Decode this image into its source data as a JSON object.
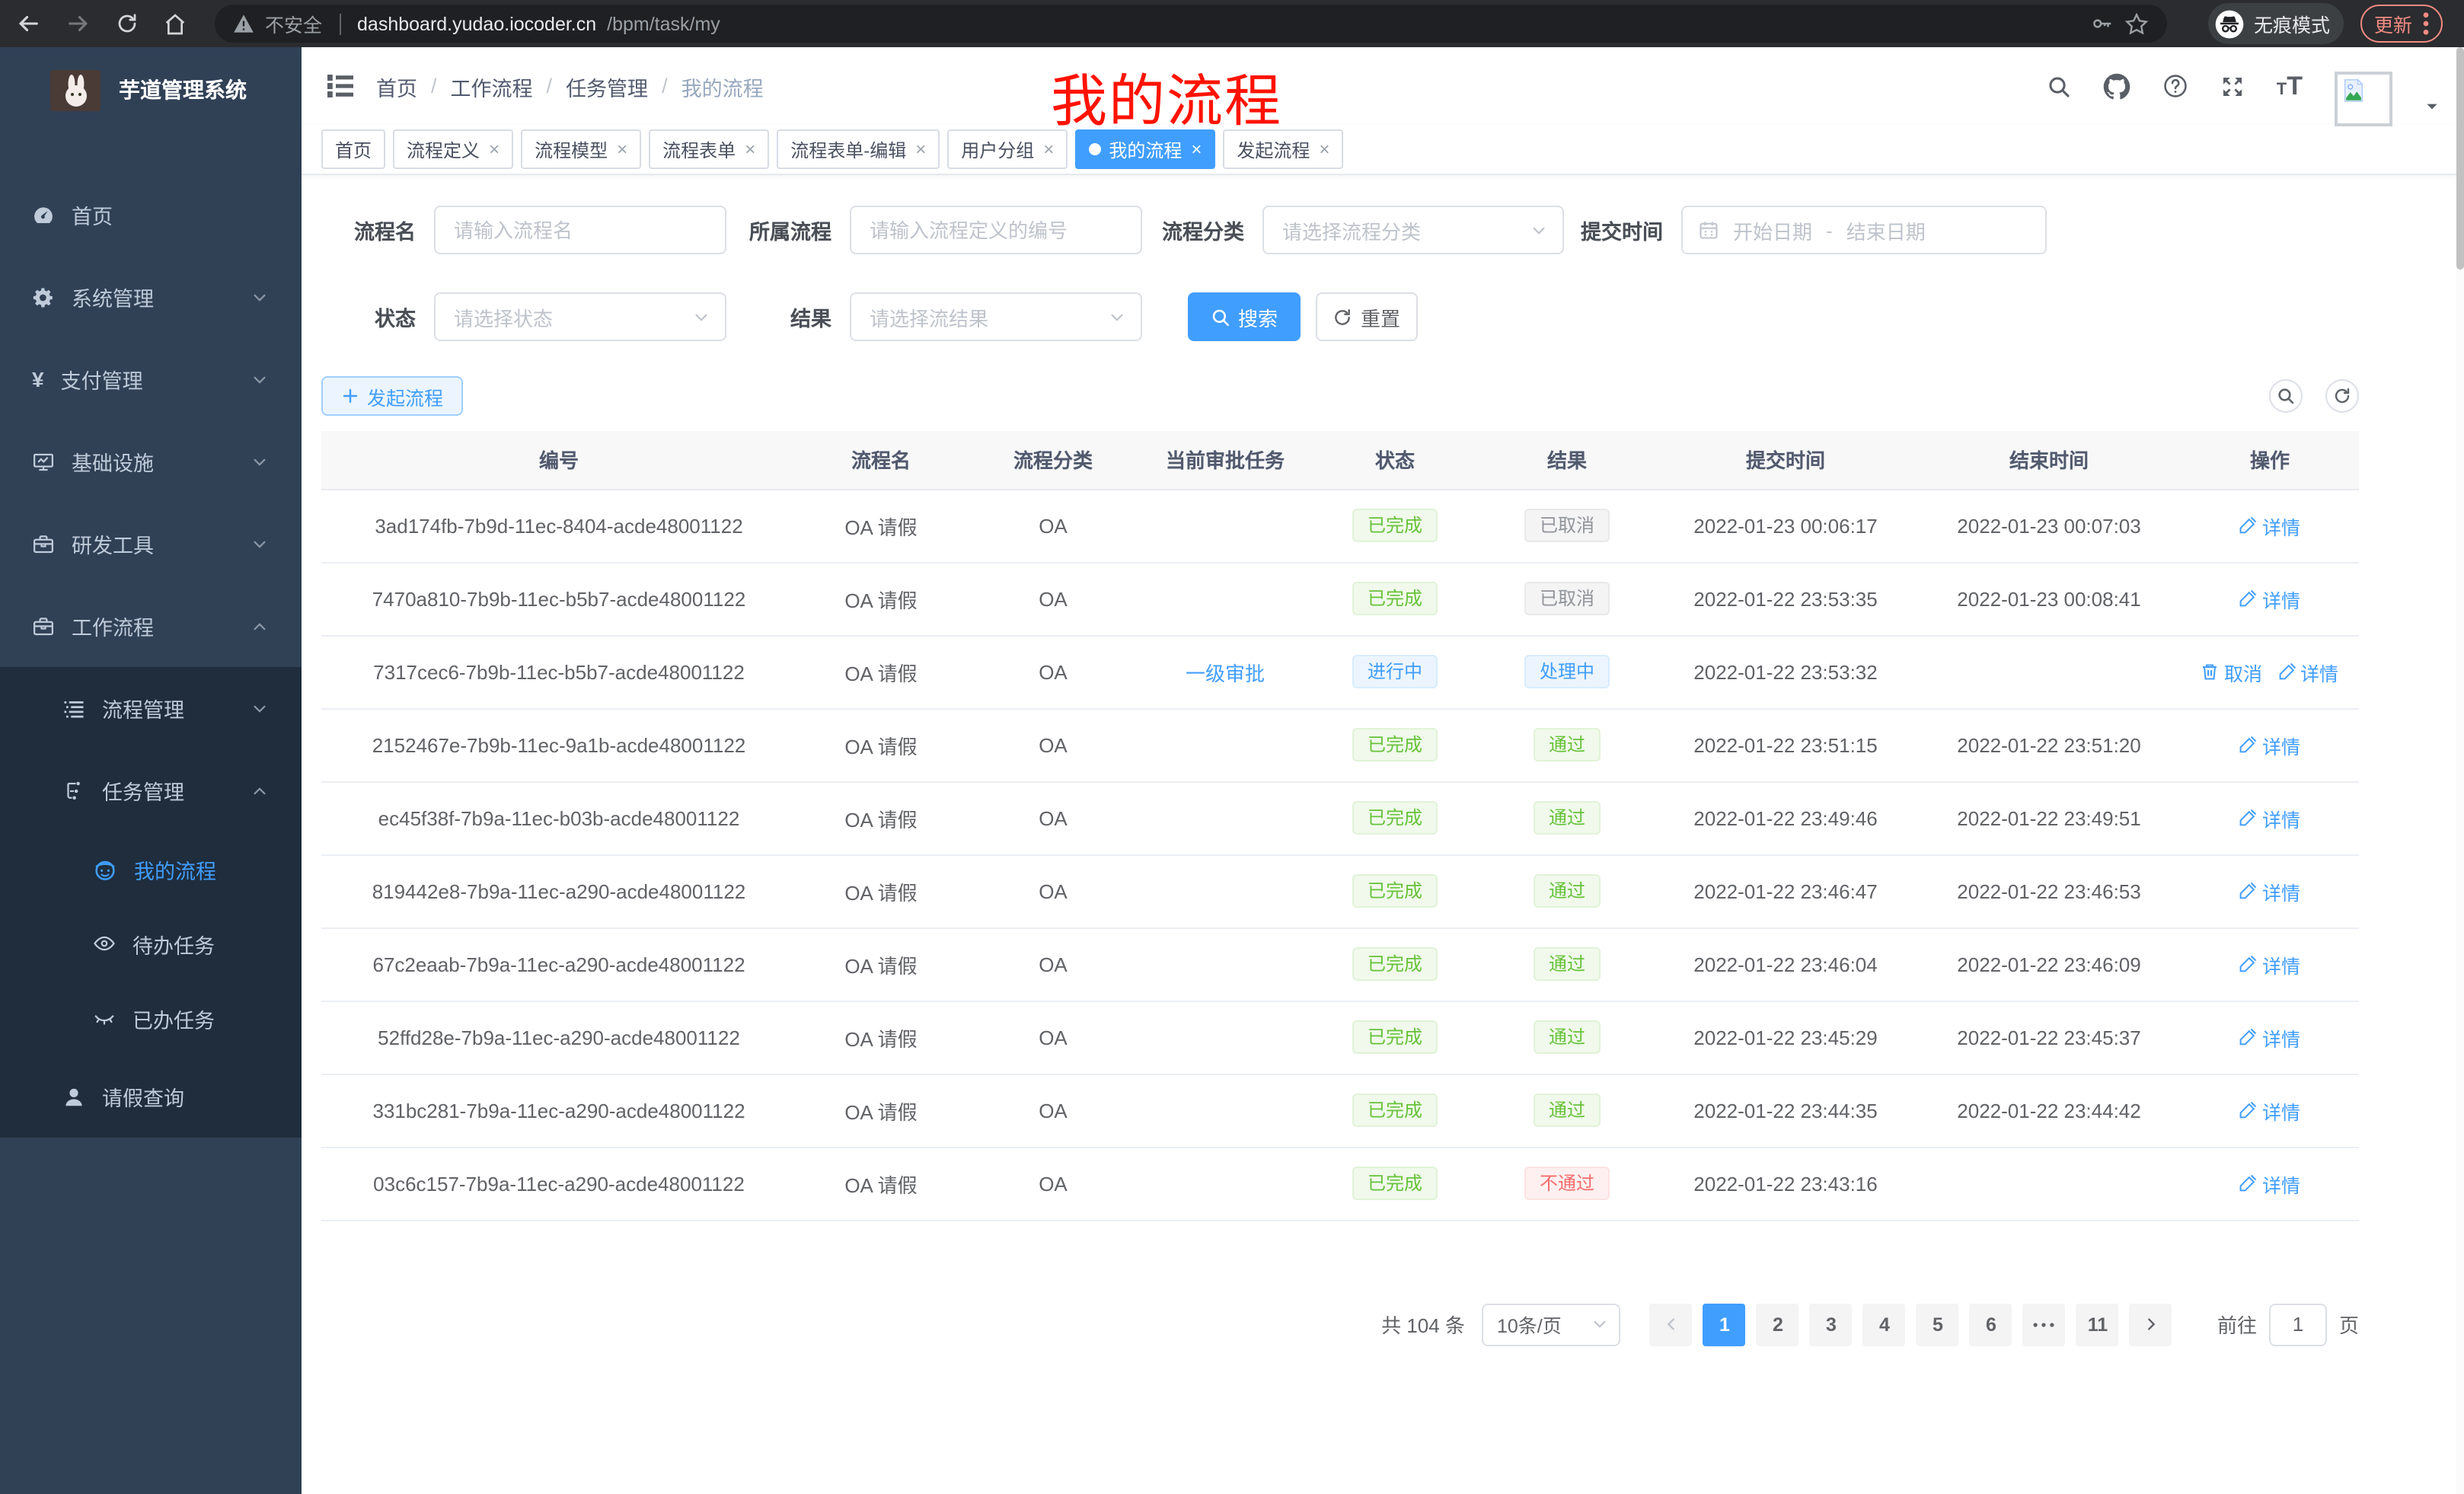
{
  "browser": {
    "security": "不安全",
    "url_host": "dashboard.yudao.iocoder.cn",
    "url_path": "/bpm/task/my",
    "incognito": "无痕模式",
    "update": "更新"
  },
  "annotation": {
    "text": "我的流程",
    "color": "#ff1200"
  },
  "sidebar": {
    "title": "芋道管理系统",
    "menu": [
      {
        "label": "首页",
        "icon": "dashboard-icon",
        "level": 1
      },
      {
        "label": "系统管理",
        "icon": "gear-icon",
        "level": 1,
        "arrow": "down"
      },
      {
        "label": "支付管理",
        "icon": "yen-icon",
        "level": 1,
        "arrow": "down"
      },
      {
        "label": "基础设施",
        "icon": "monitor-icon",
        "level": 1,
        "arrow": "down"
      },
      {
        "label": "研发工具",
        "icon": "toolbox-icon",
        "level": 1,
        "arrow": "down"
      },
      {
        "label": "工作流程",
        "icon": "briefcase-icon",
        "level": 1,
        "arrow": "up"
      },
      {
        "label": "流程管理",
        "icon": "list-icon",
        "level": 2,
        "arrow": "down",
        "dark": true
      },
      {
        "label": "任务管理",
        "icon": "tree-icon",
        "level": 2,
        "arrow": "up",
        "dark": true
      },
      {
        "label": "我的流程",
        "icon": "robot-icon",
        "level": 3,
        "active": true,
        "dark": true
      },
      {
        "label": "待办任务",
        "icon": "eye-icon",
        "level": 3,
        "dark": true
      },
      {
        "label": "已办任务",
        "icon": "eye-closed-icon",
        "level": 3,
        "dark": true
      },
      {
        "label": "请假查询",
        "icon": "user-icon",
        "level": 2,
        "dark": true
      }
    ]
  },
  "header": {
    "breadcrumb": [
      "首页",
      "工作流程",
      "任务管理",
      "我的流程"
    ]
  },
  "tabs": [
    {
      "label": "首页"
    },
    {
      "label": "流程定义",
      "closable": true
    },
    {
      "label": "流程模型",
      "closable": true
    },
    {
      "label": "流程表单",
      "closable": true
    },
    {
      "label": "流程表单-编辑",
      "closable": true
    },
    {
      "label": "用户分组",
      "closable": true
    },
    {
      "label": "我的流程",
      "closable": true,
      "active": true
    },
    {
      "label": "发起流程",
      "closable": true
    }
  ],
  "filters": {
    "row1": [
      {
        "label": "流程名",
        "placeholder": "请输入流程名"
      },
      {
        "label": "所属流程",
        "placeholder": "请输入流程定义的编号"
      },
      {
        "label": "流程分类",
        "placeholder": "请选择流程分类"
      },
      {
        "label": "提交时间",
        "start": "开始日期",
        "sep": "-",
        "end": "结束日期"
      }
    ],
    "row2": [
      {
        "label": "状态",
        "placeholder": "请选择状态"
      },
      {
        "label": "结果",
        "placeholder": "请选择流结果"
      }
    ],
    "search_btn": "搜索",
    "reset_btn": "重置"
  },
  "toolbar": {
    "create_btn": "发起流程"
  },
  "table": {
    "columns": [
      "编号",
      "流程名",
      "流程分类",
      "当前审批任务",
      "状态",
      "结果",
      "提交时间",
      "结束时间",
      "操作"
    ],
    "action_detail": "详情",
    "action_cancel": "取消",
    "rows": [
      {
        "id": "3ad174fb-7b9d-11ec-8404-acde48001122",
        "name": "OA 请假",
        "category": "OA",
        "task": "",
        "status": "已完成",
        "status_type": "success",
        "result": "已取消",
        "result_type": "info",
        "submit_time": "2022-01-23 00:06:17",
        "end_time": "2022-01-23 00:07:03",
        "cancelable": false
      },
      {
        "id": "7470a810-7b9b-11ec-b5b7-acde48001122",
        "name": "OA 请假",
        "category": "OA",
        "task": "",
        "status": "已完成",
        "status_type": "success",
        "result": "已取消",
        "result_type": "info",
        "submit_time": "2022-01-22 23:53:35",
        "end_time": "2022-01-23 00:08:41",
        "cancelable": false
      },
      {
        "id": "7317cec6-7b9b-11ec-b5b7-acde48001122",
        "name": "OA 请假",
        "category": "OA",
        "task": "一级审批",
        "status": "进行中",
        "status_type": "primary",
        "result": "处理中",
        "result_type": "primary",
        "submit_time": "2022-01-22 23:53:32",
        "end_time": "",
        "cancelable": true
      },
      {
        "id": "2152467e-7b9b-11ec-9a1b-acde48001122",
        "name": "OA 请假",
        "category": "OA",
        "task": "",
        "status": "已完成",
        "status_type": "success",
        "result": "通过",
        "result_type": "success",
        "submit_time": "2022-01-22 23:51:15",
        "end_time": "2022-01-22 23:51:20",
        "cancelable": false
      },
      {
        "id": "ec45f38f-7b9a-11ec-b03b-acde48001122",
        "name": "OA 请假",
        "category": "OA",
        "task": "",
        "status": "已完成",
        "status_type": "success",
        "result": "通过",
        "result_type": "success",
        "submit_time": "2022-01-22 23:49:46",
        "end_time": "2022-01-22 23:49:51",
        "cancelable": false
      },
      {
        "id": "819442e8-7b9a-11ec-a290-acde48001122",
        "name": "OA 请假",
        "category": "OA",
        "task": "",
        "status": "已完成",
        "status_type": "success",
        "result": "通过",
        "result_type": "success",
        "submit_time": "2022-01-22 23:46:47",
        "end_time": "2022-01-22 23:46:53",
        "cancelable": false
      },
      {
        "id": "67c2eaab-7b9a-11ec-a290-acde48001122",
        "name": "OA 请假",
        "category": "OA",
        "task": "",
        "status": "已完成",
        "status_type": "success",
        "result": "通过",
        "result_type": "success",
        "submit_time": "2022-01-22 23:46:04",
        "end_time": "2022-01-22 23:46:09",
        "cancelable": false
      },
      {
        "id": "52ffd28e-7b9a-11ec-a290-acde48001122",
        "name": "OA 请假",
        "category": "OA",
        "task": "",
        "status": "已完成",
        "status_type": "success",
        "result": "通过",
        "result_type": "success",
        "submit_time": "2022-01-22 23:45:29",
        "end_time": "2022-01-22 23:45:37",
        "cancelable": false
      },
      {
        "id": "331bc281-7b9a-11ec-a290-acde48001122",
        "name": "OA 请假",
        "category": "OA",
        "task": "",
        "status": "已完成",
        "status_type": "success",
        "result": "通过",
        "result_type": "success",
        "submit_time": "2022-01-22 23:44:35",
        "end_time": "2022-01-22 23:44:42",
        "cancelable": false
      },
      {
        "id": "03c6c157-7b9a-11ec-a290-acde48001122",
        "name": "OA 请假",
        "category": "OA",
        "task": "",
        "status": "已完成",
        "status_type": "success",
        "result": "不通过",
        "result_type": "danger",
        "submit_time": "2022-01-22 23:43:16",
        "end_time": "",
        "cancelable": false
      }
    ]
  },
  "pagination": {
    "total": "共 104 条",
    "page_size": "10条/页",
    "pages": [
      "1",
      "2",
      "3",
      "4",
      "5",
      "6",
      "…",
      "11"
    ],
    "active_page": "1",
    "goto_label": "前往",
    "goto_value": "1",
    "unit": "页"
  },
  "colors": {
    "primary": "#409EFF",
    "success": "#67C23A",
    "danger": "#F56C6C",
    "info": "#909399",
    "sidebar": "#304156",
    "sidebar_dark": "#1F2D3D"
  }
}
